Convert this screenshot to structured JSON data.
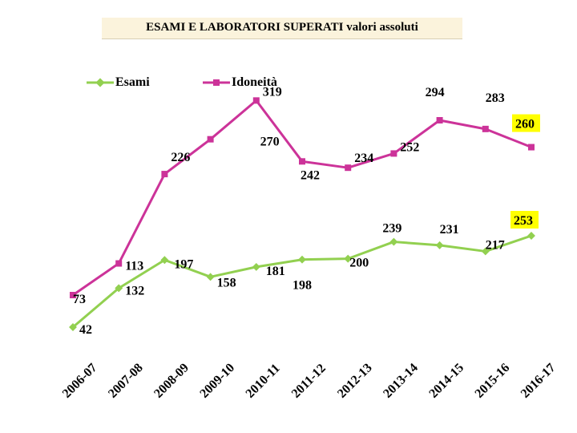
{
  "chart_data": {
    "type": "line",
    "title": "ESAMI E LABORATORI SUPERATI valori assoluti",
    "categories": [
      "2006-07",
      "2007-08",
      "2008-09",
      "2009-10",
      "2010-11",
      "2011-12",
      "2012-13",
      "2013-14",
      "2014-15",
      "2015-16",
      "2016-17"
    ],
    "series": [
      {
        "name": "Esami",
        "color": "#92d050",
        "marker": "diamond",
        "values": [
          42,
          132,
          197,
          158,
          181,
          198,
          200,
          239,
          231,
          217,
          253
        ]
      },
      {
        "name": "Idoneità",
        "color": "#cc3399",
        "marker": "square",
        "values": [
          73,
          113,
          226,
          270,
          319,
          242,
          234,
          252,
          294,
          283,
          260
        ]
      }
    ],
    "highlighted_labels": [
      {
        "series": "Esami",
        "category": "2016-17",
        "background": "#ffff00"
      },
      {
        "series": "Idoneità",
        "category": "2016-17",
        "background": "#ffff00"
      }
    ],
    "xlabel": "",
    "ylabel": "",
    "grid": false,
    "legend_position": "top-left"
  }
}
